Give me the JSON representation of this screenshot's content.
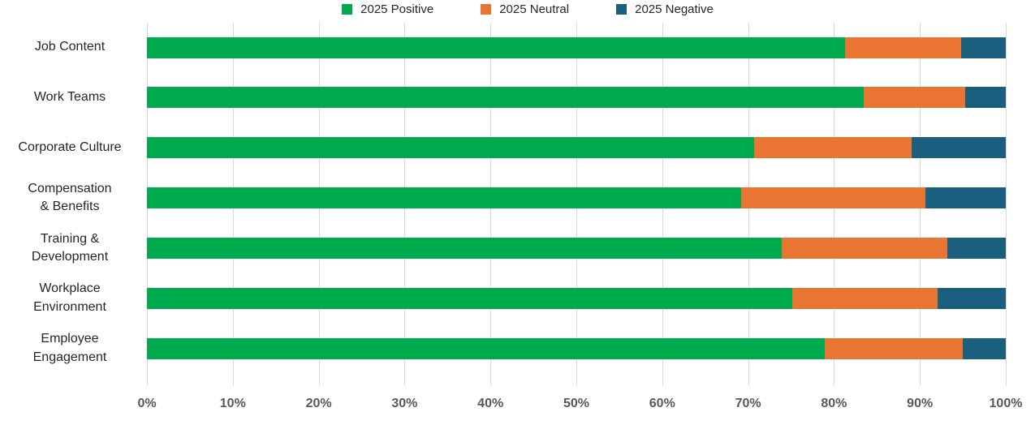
{
  "chart_data": {
    "type": "bar",
    "orientation": "horizontal",
    "stacked": true,
    "title": "",
    "xlabel": "",
    "ylabel": "",
    "xlim": [
      0,
      100
    ],
    "grid": "vertical",
    "legend_position": "top",
    "categories": [
      "Job Content",
      "Work Teams",
      "Corporate Culture",
      "Compensation\n& Benefits",
      "Training &\nDevelopment",
      "Workplace\nEnvironment",
      "Employee\nEngagement"
    ],
    "series": [
      {
        "name": "2025 Positive",
        "color": "#00AB4E",
        "values": [
          81.3,
          83.5,
          70.7,
          69.2,
          73.9,
          75.1,
          78.9
        ]
      },
      {
        "name": "2025 Neutral",
        "color": "#EA7431",
        "values": [
          13.5,
          11.8,
          18.3,
          21.4,
          19.3,
          17.0,
          16.1
        ]
      },
      {
        "name": "2025 Negative",
        "color": "#1A5F7E",
        "values": [
          5.2,
          4.7,
          11.0,
          9.4,
          6.8,
          7.9,
          5.0
        ]
      }
    ],
    "x_ticks": [
      "0%",
      "10%",
      "20%",
      "30%",
      "40%",
      "50%",
      "60%",
      "70%",
      "80%",
      "90%",
      "100%"
    ]
  },
  "colors": {
    "gridline": "#d9d9d9",
    "axis_text": "#595959",
    "category_text": "#262626",
    "background": "#ffffff"
  }
}
